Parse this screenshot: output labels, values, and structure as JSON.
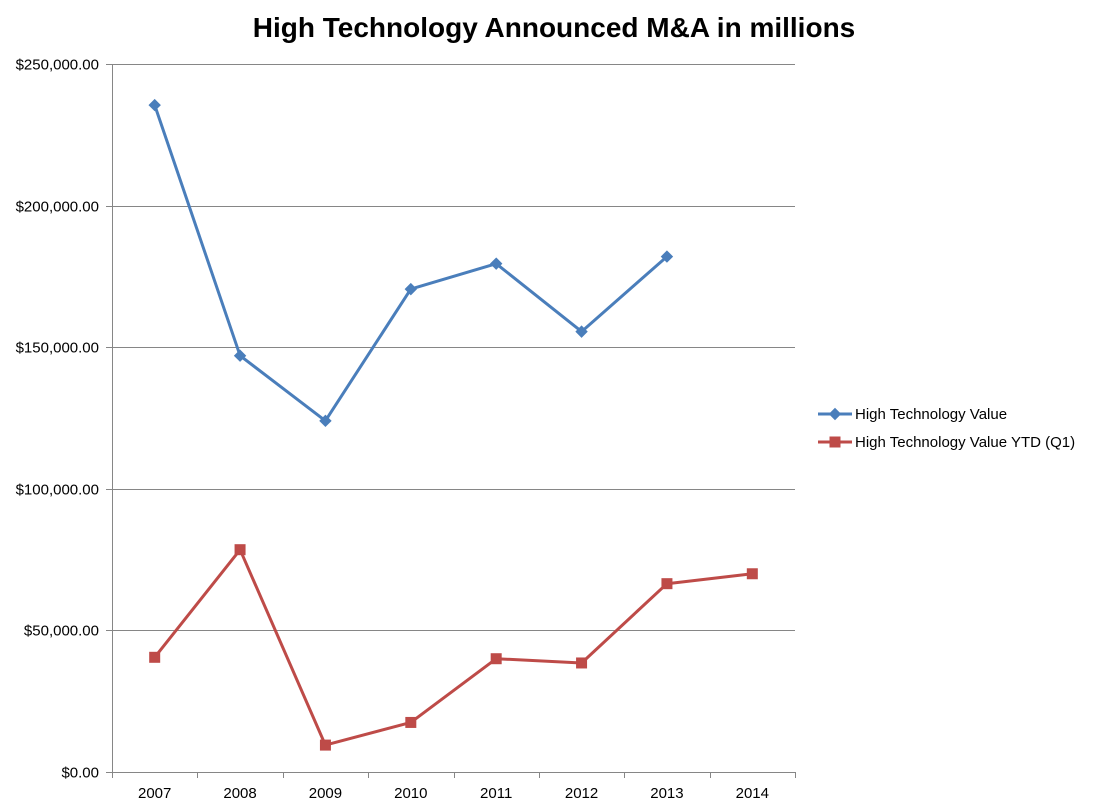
{
  "chart_data": {
    "type": "line",
    "title": "High Technology Announced M&A in millions",
    "xlabel": "",
    "ylabel": "",
    "categories": [
      "2007",
      "2008",
      "2009",
      "2010",
      "2011",
      "2012",
      "2013",
      "2014"
    ],
    "ylim": [
      0,
      250000
    ],
    "yticks": [
      0,
      50000,
      100000,
      150000,
      200000,
      250000
    ],
    "ytick_labels": [
      "$0.00",
      "$50,000.00",
      "$100,000.00",
      "$150,000.00",
      "$200,000.00",
      "$250,000.00"
    ],
    "grid": "horizontal",
    "legend_position": "right",
    "series": [
      {
        "name": "High Technology Value",
        "color": "#4a7ebb",
        "marker": "diamond",
        "values": [
          235500,
          147000,
          124000,
          170500,
          179500,
          155500,
          182000,
          null
        ]
      },
      {
        "name": "High Technology Value YTD (Q1)",
        "color": "#be4b48",
        "marker": "square",
        "values": [
          40500,
          78500,
          9500,
          17500,
          40000,
          38500,
          66500,
          70000
        ]
      }
    ]
  }
}
